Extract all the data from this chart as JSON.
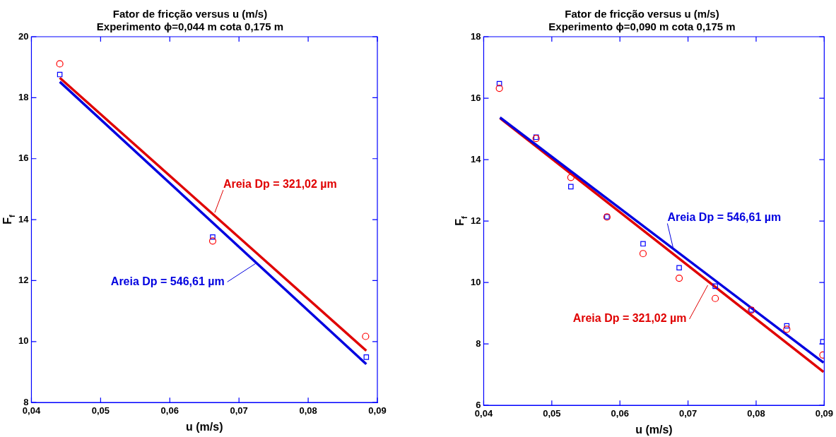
{
  "chart_data": [
    {
      "type": "scatter",
      "title": "Fator de fricção versus u (m/s)",
      "subtitle": "Experimento ϕ=0,044 m cota 0,175 m",
      "xlabel": "u (m/s)",
      "ylabel": "F$_{f}$",
      "xlim": [
        0.04,
        0.09
      ],
      "xticks": [
        {
          "value": 0.04,
          "label": "0,04"
        },
        {
          "value": 0.05,
          "label": "0,05"
        },
        {
          "value": 0.06,
          "label": "0,06"
        },
        {
          "value": 0.07,
          "label": "0,07"
        },
        {
          "value": 0.08,
          "label": "0,08"
        },
        {
          "value": 0.09,
          "label": "0,09"
        }
      ],
      "ylim": [
        8,
        20
      ],
      "yticks": [
        8,
        10,
        12,
        14,
        16,
        18,
        20
      ],
      "grid": false,
      "legend": false,
      "series": [
        {
          "type": "scatter",
          "marker": "circle",
          "color": "#ff0000",
          "x": [
            0.0441,
            0.0662,
            0.0883
          ],
          "values": [
            19.11,
            13.3,
            10.17
          ]
        },
        {
          "type": "scatter",
          "marker": "square",
          "color": "#0000ff",
          "x": [
            0.0441,
            0.0662,
            0.0884
          ],
          "values": [
            18.76,
            13.43,
            9.49
          ]
        },
        {
          "type": "line",
          "marker": "none",
          "color": "#e00000",
          "x": [
            0.0441,
            0.0884
          ],
          "values": [
            18.65,
            9.7
          ]
        },
        {
          "type": "line",
          "marker": "none",
          "color": "#0000e0",
          "x": [
            0.0441,
            0.0884
          ],
          "values": [
            18.52,
            9.26
          ]
        }
      ],
      "annotations": [
        {
          "text": "Areia Dp = 321,02 µm",
          "x": 0.0665,
          "y": 14.23
        },
        {
          "text": "Areia Dp = 546,61 µm",
          "x": 0.0724,
          "y": 12.56
        }
      ]
    },
    {
      "type": "scatter",
      "title": "Fator de fricção versus u (m/s)",
      "subtitle": "Experimento ϕ=0,090 m cota 0,175 m",
      "xlabel": "u (m/s)",
      "ylabel": "F$_{f}$",
      "xlim": [
        0.04,
        0.09
      ],
      "xticks": [
        {
          "value": 0.04,
          "label": "0,04"
        },
        {
          "value": 0.05,
          "label": "0,05"
        },
        {
          "value": 0.06,
          "label": "0,06"
        },
        {
          "value": 0.07,
          "label": "0,07"
        },
        {
          "value": 0.08,
          "label": "0,08"
        },
        {
          "value": 0.09,
          "label": "0,09"
        }
      ],
      "ylim": [
        6,
        18
      ],
      "yticks": [
        6,
        8,
        10,
        12,
        14,
        16,
        18
      ],
      "grid": false,
      "legend": false,
      "series": [
        {
          "type": "scatter",
          "marker": "circle",
          "color": "#ff0000",
          "x": [
            0.0423,
            0.0477,
            0.0528,
            0.0581,
            0.0634,
            0.0687,
            0.074,
            0.0793,
            0.0845,
            0.0898
          ],
          "values": [
            16.32,
            14.69,
            13.42,
            12.13,
            10.94,
            10.14,
            9.48,
            9.1,
            8.48,
            7.64
          ]
        },
        {
          "type": "scatter",
          "marker": "square",
          "color": "#0000ff",
          "x": [
            0.0423,
            0.0477,
            0.0528,
            0.0581,
            0.0634,
            0.0687,
            0.074,
            0.0793,
            0.0845,
            0.0898
          ],
          "values": [
            16.47,
            14.73,
            13.12,
            12.14,
            11.26,
            10.48,
            9.88,
            9.11,
            8.59,
            8.07
          ]
        },
        {
          "type": "line",
          "marker": "none",
          "color": "#0000e0",
          "x": [
            0.0424,
            0.0899
          ],
          "values": [
            15.37,
            7.39
          ]
        },
        {
          "type": "line",
          "marker": "none",
          "color": "#e00000",
          "x": [
            0.0424,
            0.0899
          ],
          "values": [
            15.35,
            7.09
          ]
        }
      ],
      "annotations": [
        {
          "text": "Areia Dp = 546,61 µm",
          "x": 0.0678,
          "y": 11.14
        },
        {
          "text": "Areia Dp = 321,02 µm",
          "x": 0.0729,
          "y": 9.91
        }
      ]
    }
  ]
}
